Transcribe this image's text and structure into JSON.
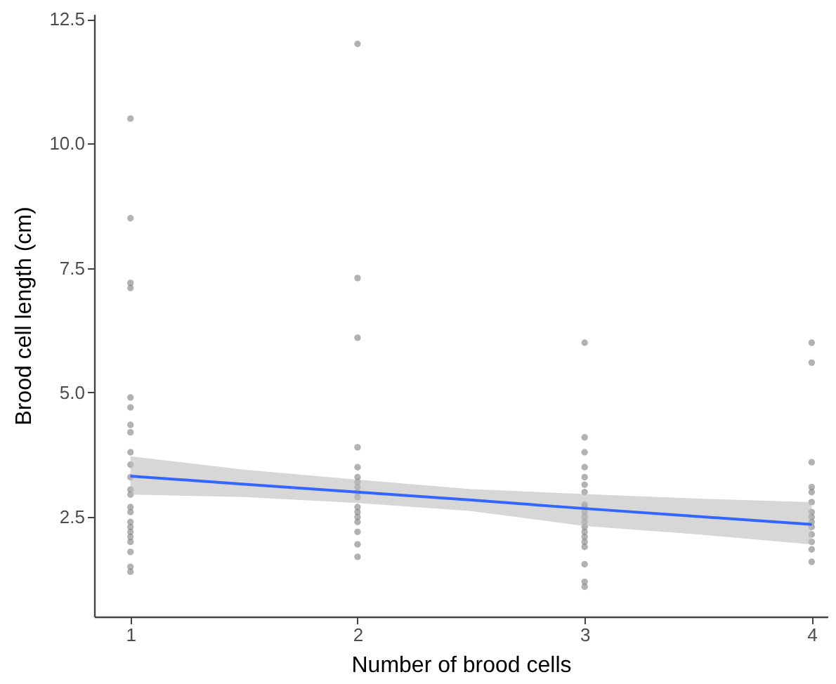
{
  "chart_data": {
    "type": "scatter",
    "xlabel": "Number of brood cells",
    "ylabel": "Brood cell length (cm)",
    "xlim": [
      0.84,
      4.07
    ],
    "xticks": [
      1,
      2,
      3,
      4
    ],
    "ylim": [
      0.5,
      12.6
    ],
    "yticks": [
      2.5,
      {
        "value": 5,
        "label": "5.0"
      },
      7.5,
      {
        "value": 10,
        "label": "10.0"
      },
      12.5
    ],
    "grid": false,
    "series": [
      {
        "marker": "circle",
        "color": "#7f7f7f",
        "x": [
          1,
          1,
          1,
          1,
          1,
          1,
          1,
          1,
          1,
          1,
          1,
          1,
          1,
          1,
          1,
          1,
          1,
          1,
          1,
          1,
          1,
          1,
          1,
          2,
          2,
          2,
          2,
          2,
          2,
          2,
          2,
          2,
          2,
          2,
          2,
          2,
          2,
          2,
          2,
          2,
          3,
          3,
          3,
          3,
          3,
          3,
          3,
          3,
          3,
          3,
          3,
          3,
          3,
          3,
          3,
          3,
          3,
          3,
          3,
          3,
          4,
          4,
          4,
          4,
          4,
          4,
          4,
          4,
          4,
          4,
          4,
          4,
          4,
          4
        ],
        "values": [
          10.5,
          8.5,
          7.2,
          7.1,
          4.9,
          4.7,
          4.35,
          4.2,
          3.8,
          3.55,
          3.3,
          3.05,
          2.95,
          2.7,
          2.6,
          2.4,
          2.3,
          2.2,
          2.1,
          2.0,
          1.8,
          1.5,
          1.4,
          12.0,
          7.3,
          6.1,
          3.9,
          3.5,
          3.3,
          3.2,
          3.1,
          3.0,
          2.9,
          2.7,
          2.6,
          2.5,
          2.4,
          2.2,
          1.95,
          1.7,
          6.0,
          4.1,
          3.8,
          3.5,
          3.3,
          3.15,
          3.0,
          2.75,
          2.6,
          2.5,
          2.4,
          2.3,
          2.2,
          2.1,
          2.0,
          1.9,
          1.55,
          1.2,
          1.1,
          2.7,
          6.0,
          5.6,
          3.6,
          3.1,
          3.0,
          2.8,
          2.6,
          2.5,
          2.4,
          2.3,
          2.15,
          2.0,
          1.85,
          1.6
        ]
      },
      {
        "type": "line",
        "color": "#3366ff",
        "x": [
          1,
          1.5,
          2,
          2.5,
          3,
          3.5,
          4
        ],
        "values": [
          3.32,
          3.16,
          3.0,
          2.84,
          2.67,
          2.51,
          2.35
        ],
        "lower": [
          2.95,
          2.9,
          2.78,
          2.62,
          2.32,
          2.15,
          1.95
        ],
        "upper": [
          3.72,
          3.45,
          3.25,
          3.06,
          2.96,
          2.87,
          2.8
        ]
      }
    ]
  }
}
